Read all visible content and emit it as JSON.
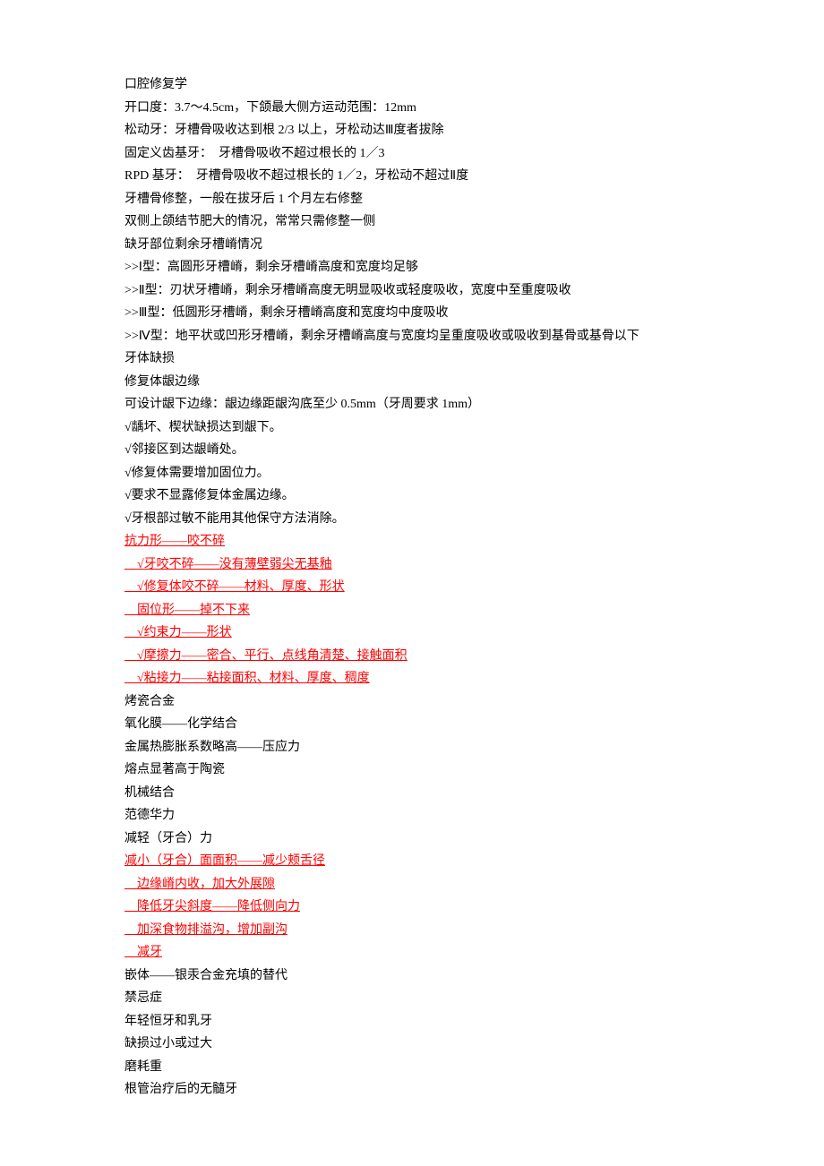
{
  "lines": [
    {
      "text": "口腔修复学",
      "red": false
    },
    {
      "text": "开口度：3.7～4.5cm，下颌最大侧方运动范围：12mm",
      "red": false
    },
    {
      "text": "松动牙：牙槽骨吸收达到根 2/3 以上，牙松动达Ⅲ度者拔除",
      "red": false
    },
    {
      "text": "固定义齿基牙：  牙槽骨吸收不超过根长的 1／3 ",
      "red": false
    },
    {
      "text": "RPD 基牙：  牙槽骨吸收不超过根长的 1／2，牙松动不超过Ⅱ度",
      "red": false
    },
    {
      "text": "牙槽骨修整，一般在拔牙后 1 个月左右修整",
      "red": false
    },
    {
      "text": "双侧上颌结节肥大的情况，常常只需修整一侧",
      "red": false
    },
    {
      "text": "缺牙部位剩余牙槽嵴情况",
      "red": false
    },
    {
      "text": ">>Ⅰ型：高圆形牙槽嵴，剩余牙槽嵴高度和宽度均足够",
      "red": false
    },
    {
      "text": ">>Ⅱ型：刃状牙槽嵴，剩余牙槽嵴高度无明显吸收或轻度吸收，宽度中至重度吸收",
      "red": false
    },
    {
      "text": ">>Ⅲ型：低圆形牙槽嵴，剩余牙槽嵴高度和宽度均中度吸收",
      "red": false
    },
    {
      "text": ">>Ⅳ型：地平状或凹形牙槽嵴，剩余牙槽嵴高度与宽度均呈重度吸收或吸收到基骨或基骨以下",
      "red": false
    },
    {
      "text": "牙体缺损",
      "red": false
    },
    {
      "text": "修复体龈边缘",
      "red": false
    },
    {
      "text": "可设计龈下边缘：龈边缘距龈沟底至少 0.5mm（牙周要求 1mm）",
      "red": false
    },
    {
      "text": "√龋坏、楔状缺损达到龈下。",
      "red": false
    },
    {
      "text": "√邻接区到达龈嵴处。",
      "red": false
    },
    {
      "text": "√修复体需要增加固位力。",
      "red": false
    },
    {
      "text": "√要求不显露修复体金属边缘。",
      "red": false
    },
    {
      "text": "√牙根部过敏不能用其他保守方法消除。",
      "red": false
    },
    {
      "text": "抗力形——咬不碎",
      "red": true,
      "prefix": ""
    },
    {
      "text": "√牙咬不碎——没有薄壁弱尖无基釉",
      "red": true,
      "prefix": "    "
    },
    {
      "text": "√修复体咬不碎——材料、厚度、形状",
      "red": true,
      "prefix": "    "
    },
    {
      "text": "固位形——掉不下来",
      "red": true,
      "prefix": "    "
    },
    {
      "text": "√约束力——形状",
      "red": true,
      "prefix": "    "
    },
    {
      "text": "√摩擦力——密合、平行、点线角清楚、接触面积",
      "red": true,
      "prefix": "    "
    },
    {
      "text": "√粘接力——粘接面积、材料、厚度、稠度",
      "red": true,
      "prefix": "    "
    },
    {
      "text": "烤瓷合金",
      "red": false
    },
    {
      "text": "氧化膜——化学结合",
      "red": false
    },
    {
      "text": "金属热膨胀系数略高——压应力",
      "red": false
    },
    {
      "text": "熔点显著高于陶瓷",
      "red": false
    },
    {
      "text": "机械结合",
      "red": false
    },
    {
      "text": "范德华力",
      "red": false
    },
    {
      "text": "减轻（牙合）力",
      "red": false
    },
    {
      "text": "减小（牙合）面面积——减少颊舌径",
      "red": true,
      "prefix": ""
    },
    {
      "text": "边缘嵴内收，加大外展隙",
      "red": true,
      "prefix": "    "
    },
    {
      "text": "降低牙尖斜度——降低侧向力",
      "red": true,
      "prefix": "    "
    },
    {
      "text": "加深食物排溢沟，增加副沟",
      "red": true,
      "prefix": "    "
    },
    {
      "text": "减牙",
      "red": true,
      "prefix": "    "
    },
    {
      "text": "嵌体——银汞合金充填的替代",
      "red": false
    },
    {
      "text": "禁忌症",
      "red": false
    },
    {
      "text": "年轻恒牙和乳牙",
      "red": false
    },
    {
      "text": "缺损过小或过大",
      "red": false
    },
    {
      "text": "磨耗重",
      "red": false
    },
    {
      "text": "根管治疗后的无髓牙",
      "red": false
    }
  ],
  "styles": {
    "text_color_normal": "#000000",
    "text_color_red": "#ff0000",
    "font_size": 14,
    "line_height": 25.5,
    "background": "#ffffff"
  }
}
